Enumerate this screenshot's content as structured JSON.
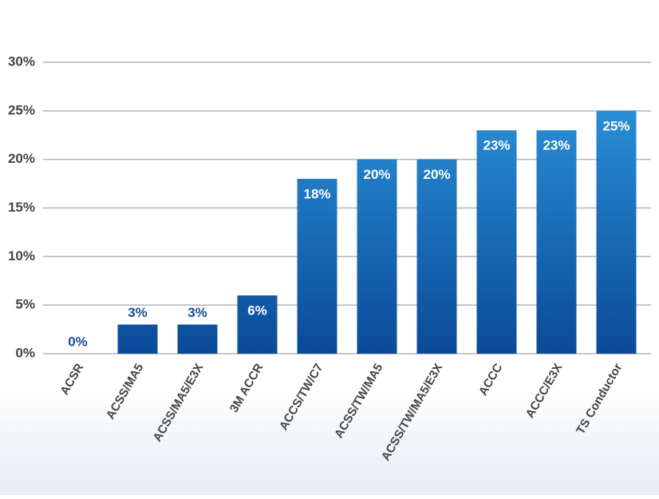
{
  "chart_data": {
    "type": "bar",
    "categories": [
      "ACSR",
      "ACSS/MA5",
      "ACSS/MA5/E3X",
      "3M ACCR",
      "ACCS/TW/C7",
      "ACSS/TW/MA5",
      "ACSS/TW/MA5/E3X",
      "ACCC",
      "ACCC/E3X",
      "TS Conductor"
    ],
    "values": [
      0,
      3,
      3,
      6,
      18,
      20,
      20,
      23,
      23,
      25
    ],
    "value_labels": [
      "0%",
      "3%",
      "3%",
      "6%",
      "18%",
      "20%",
      "20%",
      "23%",
      "23%",
      "25%"
    ],
    "color": "#1769b8",
    "ylim": [
      0,
      30
    ],
    "yticks": [
      {
        "value": 0,
        "label": "0%"
      },
      {
        "value": 5,
        "label": "5%"
      },
      {
        "value": 10,
        "label": "10%"
      },
      {
        "value": 15,
        "label": "15%"
      },
      {
        "value": 20,
        "label": "20%"
      },
      {
        "value": 25,
        "label": "25%"
      },
      {
        "value": 30,
        "label": "30%"
      }
    ],
    "grid": true
  }
}
